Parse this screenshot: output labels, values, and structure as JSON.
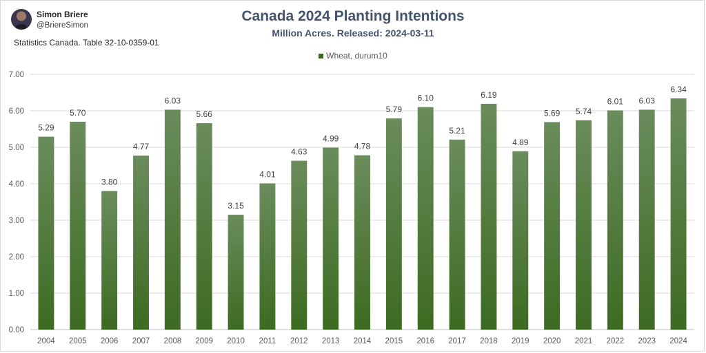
{
  "author": {
    "name": "Simon Briere",
    "handle": "@BriereSimon"
  },
  "source": "Statistics Canada. Table 32-10-0359-01",
  "chart_data": {
    "type": "bar",
    "title": "Canada 2024 Planting Intentions",
    "subtitle": "Million Acres. Released: 2024-03-11",
    "categories": [
      "2004",
      "2005",
      "2006",
      "2007",
      "2008",
      "2009",
      "2010",
      "2011",
      "2012",
      "2013",
      "2014",
      "2015",
      "2016",
      "2017",
      "2018",
      "2019",
      "2020",
      "2021",
      "2022",
      "2023",
      "2024"
    ],
    "series": [
      {
        "name": "Wheat, durum10",
        "values": [
          5.29,
          5.7,
          3.8,
          4.77,
          6.03,
          5.66,
          3.15,
          4.01,
          4.63,
          4.99,
          4.78,
          5.79,
          6.1,
          5.21,
          6.19,
          4.89,
          5.69,
          5.74,
          6.01,
          6.03,
          6.34
        ]
      }
    ],
    "ylim": [
      0,
      7
    ],
    "yticks": [
      "0.00",
      "1.00",
      "2.00",
      "3.00",
      "4.00",
      "5.00",
      "6.00",
      "7.00"
    ],
    "grid": true,
    "legend": "top",
    "colors": {
      "bar_top": "#6a8c5c",
      "bar_bottom": "#3d6b21"
    }
  }
}
